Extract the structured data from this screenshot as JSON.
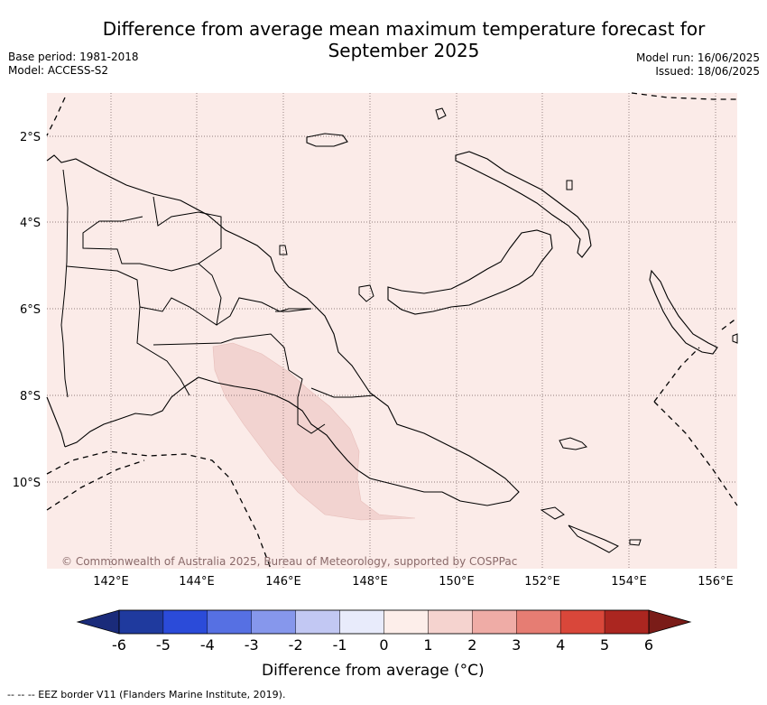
{
  "title": "Difference from average mean maximum temperature forecast for September 2025",
  "meta": {
    "base_period": "Base period: 1981-2018",
    "model": "Model: ACCESS-S2",
    "model_run": "Model run: 16/06/2025",
    "issued": "Issued: 18/06/2025"
  },
  "map": {
    "lat_labels": [
      "2°S",
      "4°S",
      "6°S",
      "8°S",
      "10°S"
    ],
    "lon_labels": [
      "142°E",
      "144°E",
      "146°E",
      "148°E",
      "150°E",
      "152°E",
      "154°E",
      "156°E"
    ],
    "copyright": "© Commonwealth of Australia 2025, Bureau of Meteorology, supported by COSPPac",
    "background_color": "#fbebe8",
    "anomaly_patch_color": "#f2d3d0"
  },
  "colorbar": {
    "ticks": [
      "-6",
      "-5",
      "-4",
      "-3",
      "-2",
      "-1",
      "0",
      "1",
      "2",
      "3",
      "4",
      "5",
      "6"
    ],
    "colors": [
      "#1f3a9e",
      "#2b4bd9",
      "#5670e3",
      "#8697ec",
      "#c2c8f3",
      "#e8ebfb",
      "#fdeeea",
      "#f5d3cf",
      "#efaca6",
      "#e67d73",
      "#d9473a",
      "#ab2620"
    ],
    "low_extend": "#1a2b7a",
    "high_extend": "#7a1c18",
    "label": "Difference from average (°C)"
  },
  "footer": "-- -- -- EEZ border V11 (Flanders Marine Institute, 2019)."
}
